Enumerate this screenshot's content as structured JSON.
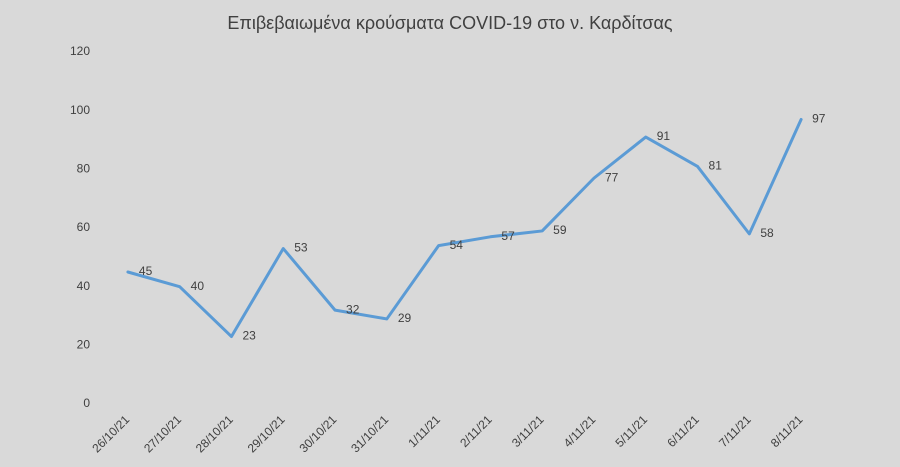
{
  "chart_data": {
    "type": "line",
    "title": "Επιβεβαιωμένα κρούσματα COVID-19 στο ν. Καρδίτσας",
    "categories": [
      "26/10/21",
      "27/10/21",
      "28/10/21",
      "29/10/21",
      "30/10/21",
      "31/10/21",
      "1/11/21",
      "2/11/21",
      "3/11/21",
      "4/11/21",
      "5/11/21",
      "6/11/21",
      "7/11/21",
      "8/11/21"
    ],
    "values": [
      45,
      40,
      23,
      53,
      32,
      29,
      54,
      57,
      59,
      77,
      91,
      81,
      58,
      97
    ],
    "color": "#5b9bd5",
    "ylim": [
      0,
      120
    ],
    "yticks": [
      0,
      20,
      40,
      60,
      80,
      100,
      120
    ],
    "grid": false
  }
}
